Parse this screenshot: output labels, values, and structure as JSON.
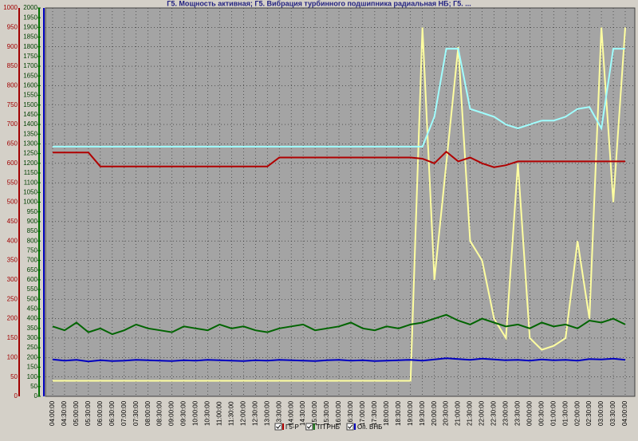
{
  "chart_data": {
    "type": "line",
    "title": "Г5. Мощность активная; Г5. Вибрация турбинного подшипника радиальная НБ; Г5. ...",
    "x": [
      0,
      0.5,
      1,
      1.5,
      2,
      2.5,
      3,
      3.5,
      4,
      4.5,
      5,
      5.5,
      6,
      6.5,
      7,
      7.5,
      8,
      8.5,
      9,
      9.5,
      10,
      10.5,
      11,
      11.5,
      12,
      12.5,
      13,
      13.5,
      14,
      14.5,
      15,
      15.5,
      16,
      16.5,
      17,
      17.5,
      18,
      18.5,
      19,
      19.5,
      20,
      20.5,
      21,
      21.5,
      22,
      22.5,
      23,
      23.5,
      24
    ],
    "xlim": [
      0,
      24
    ],
    "xticks": [
      {
        "value": 0,
        "label": "04:00:00"
      },
      {
        "value": 0.5,
        "label": "04:30:00"
      },
      {
        "value": 1,
        "label": "05:00:00"
      },
      {
        "value": 1.5,
        "label": "05:30:00"
      },
      {
        "value": 2,
        "label": "06:00:00"
      },
      {
        "value": 2.5,
        "label": "06:30:00"
      },
      {
        "value": 3,
        "label": "07:00:00"
      },
      {
        "value": 3.5,
        "label": "07:30:00"
      },
      {
        "value": 4,
        "label": "08:00:00"
      },
      {
        "value": 4.5,
        "label": "08:30:00"
      },
      {
        "value": 5,
        "label": "09:00:00"
      },
      {
        "value": 5.5,
        "label": "09:30:00"
      },
      {
        "value": 6,
        "label": "10:00:00"
      },
      {
        "value": 6.5,
        "label": "10:30:00"
      },
      {
        "value": 7,
        "label": "11:00:00"
      },
      {
        "value": 7.5,
        "label": "11:30:00"
      },
      {
        "value": 8,
        "label": "12:00:00"
      },
      {
        "value": 8.5,
        "label": "12:30:00"
      },
      {
        "value": 9,
        "label": "13:00:00"
      },
      {
        "value": 9.5,
        "label": "13:30:00"
      },
      {
        "value": 10,
        "label": "14:00:00"
      },
      {
        "value": 10.5,
        "label": "14:30:00"
      },
      {
        "value": 11,
        "label": "15:00:00"
      },
      {
        "value": 11.5,
        "label": "15:30:00"
      },
      {
        "value": 12,
        "label": "16:00:00"
      },
      {
        "value": 12.5,
        "label": "16:30:00"
      },
      {
        "value": 13,
        "label": "17:00:00"
      },
      {
        "value": 13.5,
        "label": "17:30:00"
      },
      {
        "value": 14,
        "label": "18:00:00"
      },
      {
        "value": 14.5,
        "label": "18:30:00"
      },
      {
        "value": 15,
        "label": "19:00:00"
      },
      {
        "value": 15.5,
        "label": "19:30:00"
      },
      {
        "value": 16,
        "label": "20:00:00"
      },
      {
        "value": 16.5,
        "label": "20:30:00"
      },
      {
        "value": 17,
        "label": "21:00:00"
      },
      {
        "value": 17.5,
        "label": "21:30:00"
      },
      {
        "value": 18,
        "label": "22:00:00"
      },
      {
        "value": 18.5,
        "label": "22:30:00"
      },
      {
        "value": 19,
        "label": "23:00:00"
      },
      {
        "value": 19.5,
        "label": "23:30:00"
      },
      {
        "value": 20,
        "label": "00:00:00"
      },
      {
        "value": 20.5,
        "label": "00:30:00"
      },
      {
        "value": 21,
        "label": "01:00:00"
      },
      {
        "value": 21.5,
        "label": "01:30:00"
      },
      {
        "value": 22,
        "label": "02:00:00"
      },
      {
        "value": 22.5,
        "label": "02:30:00"
      },
      {
        "value": 23,
        "label": "03:00:00"
      },
      {
        "value": 23.5,
        "label": "03:30:00"
      },
      {
        "value": 24,
        "label": "04:00:00"
      }
    ],
    "ylim": [
      0,
      1000
    ],
    "yticks": [
      0,
      50,
      100,
      150,
      200,
      250,
      300,
      350,
      400,
      450,
      500,
      550,
      600,
      650,
      700,
      750,
      800,
      850,
      900,
      950,
      1000
    ],
    "y2lim": [
      0,
      2000
    ],
    "y2ticks": [
      0,
      50,
      100,
      150,
      200,
      250,
      300,
      350,
      400,
      450,
      500,
      550,
      600,
      650,
      700,
      750,
      800,
      850,
      900,
      950,
      1000,
      1050,
      1100,
      1150,
      1200,
      1250,
      1300,
      1350,
      1400,
      1450,
      1500,
      1550,
      1600,
      1650,
      1700,
      1750,
      1800,
      1850,
      1900,
      1950,
      2000
    ],
    "grid": true,
    "series": [
      {
        "name": "Г5-Р",
        "color": "#b00000",
        "values": [
          628,
          628,
          628,
          628,
          592,
          592,
          592,
          592,
          592,
          592,
          592,
          592,
          592,
          592,
          592,
          592,
          592,
          592,
          592,
          615,
          615,
          615,
          615,
          615,
          615,
          615,
          615,
          615,
          615,
          615,
          615,
          612,
          600,
          630,
          605,
          615,
          600,
          590,
          595,
          605,
          605,
          605,
          605,
          605,
          605,
          605,
          605,
          605,
          605
        ]
      },
      {
        "name": "ТП РНБ",
        "color": "#006400",
        "values": [
          180,
          170,
          190,
          165,
          175,
          160,
          170,
          185,
          175,
          170,
          165,
          180,
          175,
          170,
          185,
          175,
          180,
          170,
          165,
          175,
          180,
          185,
          170,
          175,
          180,
          190,
          175,
          170,
          180,
          175,
          185,
          190,
          200,
          210,
          195,
          185,
          200,
          190,
          180,
          185,
          175,
          190,
          180,
          185,
          175,
          195,
          190,
          200,
          185
        ]
      },
      {
        "name": "Оп. ВНБ",
        "color": "#0000c0",
        "values": [
          95,
          92,
          94,
          90,
          93,
          91,
          92,
          94,
          93,
          92,
          91,
          93,
          92,
          94,
          93,
          92,
          91,
          93,
          92,
          94,
          93,
          92,
          91,
          93,
          94,
          92,
          93,
          91,
          92,
          93,
          94,
          92,
          95,
          98,
          96,
          94,
          97,
          95,
          93,
          94,
          92,
          95,
          93,
          94,
          92,
          96,
          95,
          97,
          94
        ]
      },
      {
        "color": "#ffffa0",
        "values": [
          40,
          40,
          40,
          40,
          40,
          40,
          40,
          40,
          40,
          40,
          40,
          40,
          40,
          40,
          40,
          40,
          40,
          40,
          40,
          40,
          40,
          40,
          40,
          40,
          40,
          40,
          40,
          40,
          40,
          40,
          40,
          950,
          300,
          600,
          900,
          400,
          350,
          200,
          150,
          600,
          150,
          120,
          130,
          150,
          400,
          200,
          950,
          500,
          950
        ]
      },
      {
        "color": "#a0ffff",
        "values": [
          643,
          643,
          643,
          643,
          643,
          643,
          643,
          643,
          643,
          643,
          643,
          643,
          643,
          643,
          643,
          643,
          643,
          643,
          643,
          643,
          643,
          643,
          643,
          643,
          643,
          643,
          643,
          643,
          643,
          643,
          643,
          643,
          720,
          895,
          895,
          740,
          730,
          720,
          700,
          690,
          700,
          710,
          710,
          720,
          740,
          745,
          690,
          895,
          895
        ]
      }
    ]
  }
}
